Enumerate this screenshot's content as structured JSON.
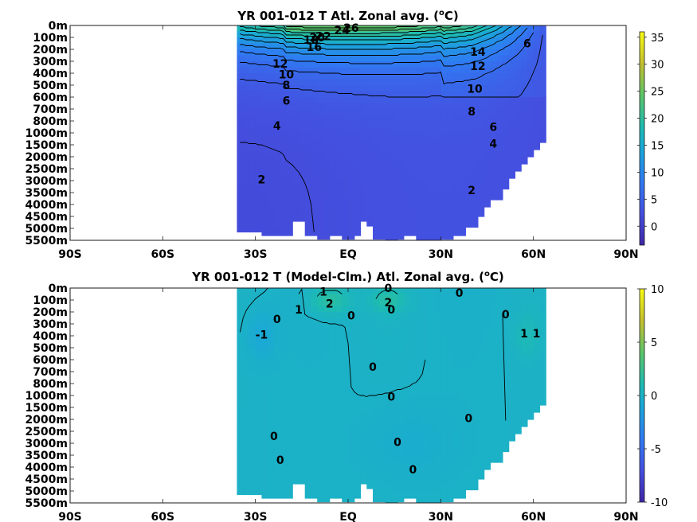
{
  "chart_data": [
    {
      "type": "heatmap",
      "title": "YR 001-012 T Atl. Zonal avg. (",
      "title_sup": "o",
      "title_end": "C)",
      "x_tick_labels": [
        "90S",
        "60S",
        "30S",
        "EQ",
        "30N",
        "60N",
        "90N"
      ],
      "x_ticks": [
        -90,
        -60,
        -30,
        0,
        30,
        60,
        90
      ],
      "xlim": [
        -90,
        90
      ],
      "y_tick_labels": [
        "0m",
        "100m",
        "200m",
        "300m",
        "400m",
        "500m",
        "600m",
        "700m",
        "800m",
        "1000m",
        "1500m",
        "2000m",
        "2500m",
        "3000m",
        "3500m",
        "4000m",
        "4500m",
        "5000m",
        "5500m"
      ],
      "colorbar": {
        "min": -3.5,
        "max": 36,
        "ticks": [
          0,
          5,
          10,
          15,
          20,
          25,
          30,
          35
        ],
        "tick_labels": [
          "0",
          "5",
          "10",
          "15",
          "20",
          "25",
          "30",
          "35"
        ]
      },
      "colors": {
        "low": "#3e26a8",
        "mid": "#2ab6b9",
        "high": "#f9fb15"
      },
      "contour_labels": [
        {
          "text": "26",
          "lat": 1,
          "level": 0.2
        },
        {
          "text": "24",
          "lat": -2,
          "level": 0.4
        },
        {
          "text": "22",
          "lat": -8,
          "level": 0.9
        },
        {
          "text": "20",
          "lat": -10,
          "level": 1.0
        },
        {
          "text": "18",
          "lat": -12,
          "level": 1.2
        },
        {
          "text": "16",
          "lat": -11,
          "level": 1.8
        },
        {
          "text": "14",
          "lat": 42,
          "level": 2.2
        },
        {
          "text": "12",
          "lat": -22,
          "level": 3.2
        },
        {
          "text": "12",
          "lat": 42,
          "level": 3.4
        },
        {
          "text": "10",
          "lat": -20,
          "level": 4.1
        },
        {
          "text": "10",
          "lat": 41,
          "level": 5.3
        },
        {
          "text": "8",
          "lat": -20,
          "level": 5.0
        },
        {
          "text": "8",
          "lat": 40,
          "level": 7.2
        },
        {
          "text": "6",
          "lat": -20,
          "level": 6.3
        },
        {
          "text": "6",
          "lat": 58,
          "level": 1.5
        },
        {
          "text": "6",
          "lat": 47,
          "level": 8.5
        },
        {
          "text": "4",
          "lat": -23,
          "level": 8.4
        },
        {
          "text": "4",
          "lat": 47,
          "level": 9.9
        },
        {
          "text": "2",
          "lat": -28,
          "level": 12.9
        },
        {
          "text": "2",
          "lat": 40,
          "level": 13.8
        }
      ]
    },
    {
      "type": "heatmap",
      "title": "YR 001-012 T (Model-Clm.) Atl. Zonal avg. (",
      "title_sup": "o",
      "title_end": "C)",
      "x_tick_labels": [
        "90S",
        "60S",
        "30S",
        "EQ",
        "30N",
        "60N",
        "90N"
      ],
      "x_ticks": [
        -90,
        -60,
        -30,
        0,
        30,
        60,
        90
      ],
      "xlim": [
        -90,
        90
      ],
      "y_tick_labels": [
        "0m",
        "100m",
        "200m",
        "300m",
        "400m",
        "500m",
        "600m",
        "700m",
        "800m",
        "1000m",
        "1500m",
        "2000m",
        "2500m",
        "3000m",
        "3500m",
        "4000m",
        "4500m",
        "5000m",
        "5500m"
      ],
      "colorbar": {
        "min": -10,
        "max": 10,
        "ticks": [
          -10,
          -5,
          0,
          5,
          10
        ],
        "tick_labels": [
          "-10",
          "-5",
          "0",
          "5",
          "10"
        ]
      },
      "colors": {
        "low": "#3e26a8",
        "mid": "#2ab6b9",
        "high": "#f9fb15"
      },
      "contour_labels": [
        {
          "text": "1",
          "lat": -8,
          "level": 0.3
        },
        {
          "text": "0",
          "lat": 13,
          "level": 0.0
        },
        {
          "text": "2",
          "lat": -6,
          "level": 1.3
        },
        {
          "text": "2",
          "lat": 13,
          "level": 1.2
        },
        {
          "text": "1",
          "lat": -16,
          "level": 1.8
        },
        {
          "text": "0",
          "lat": 1,
          "level": 2.3
        },
        {
          "text": "0",
          "lat": 14,
          "level": 1.8
        },
        {
          "text": "0",
          "lat": 36,
          "level": 0.4
        },
        {
          "text": "0",
          "lat": 51,
          "level": 2.2
        },
        {
          "text": "0",
          "lat": -23,
          "level": 2.6
        },
        {
          "text": "-1",
          "lat": -28,
          "level": 3.9
        },
        {
          "text": "1",
          "lat": 57,
          "level": 3.8
        },
        {
          "text": "1",
          "lat": 61,
          "level": 3.8
        },
        {
          "text": "0",
          "lat": 8,
          "level": 6.6
        },
        {
          "text": "0",
          "lat": 14,
          "level": 9.1
        },
        {
          "text": "0",
          "lat": 39,
          "level": 10.9
        },
        {
          "text": "0",
          "lat": -24,
          "level": 12.4
        },
        {
          "text": "0",
          "lat": 16,
          "level": 12.9
        },
        {
          "text": "0",
          "lat": -22,
          "level": 14.4
        },
        {
          "text": "0",
          "lat": 21,
          "level": 15.2
        }
      ]
    }
  ]
}
